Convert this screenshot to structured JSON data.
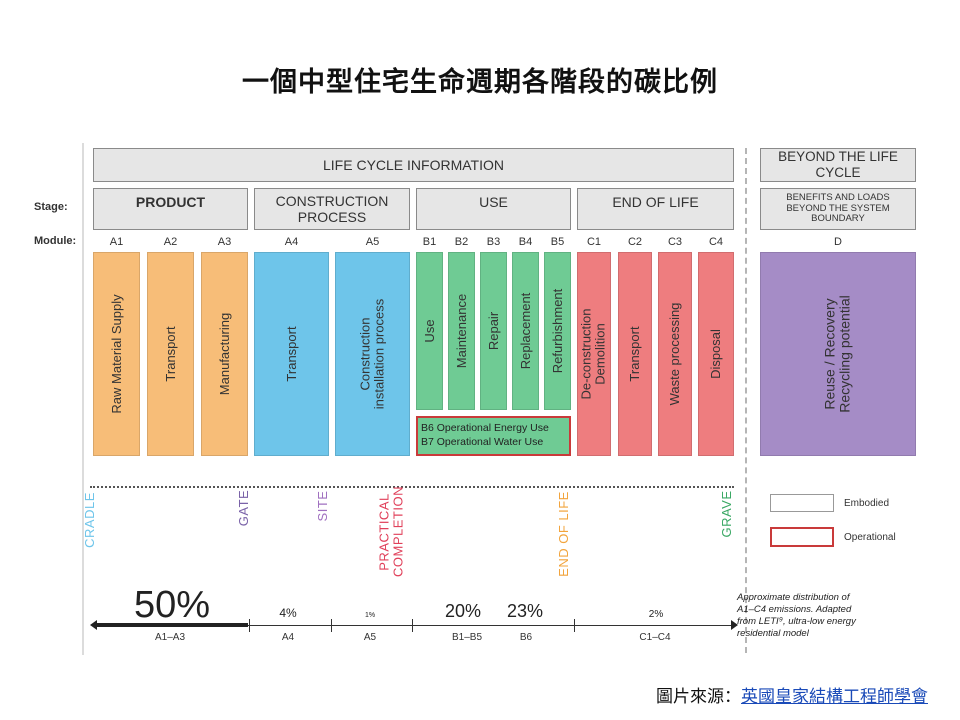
{
  "title": "一個中型住宅生命週期各階段的碳比例",
  "headers": {
    "life_cycle": "LIFE CYCLE INFORMATION",
    "beyond": "BEYOND THE LIFE CYCLE",
    "row_stage": "Stage:",
    "row_module": "Module:"
  },
  "stages": {
    "product": "PRODUCT",
    "construction": "CONSTRUCTION PROCESS",
    "use": "USE",
    "end_of_life": "END OF LIFE",
    "benefits": "BENEFITS AND LOADS BEYOND THE SYSTEM BOUNDARY"
  },
  "modules": [
    {
      "code": "A1",
      "label": "Raw Material Supply"
    },
    {
      "code": "A2",
      "label": "Transport"
    },
    {
      "code": "A3",
      "label": "Manufacturing"
    },
    {
      "code": "A4",
      "label": "Transport"
    },
    {
      "code": "A5",
      "label": "Construction installation process"
    },
    {
      "code": "B1",
      "label": "Use"
    },
    {
      "code": "B2",
      "label": "Maintenance"
    },
    {
      "code": "B3",
      "label": "Repair"
    },
    {
      "code": "B4",
      "label": "Replacement"
    },
    {
      "code": "B5",
      "label": "Refurbishment"
    },
    {
      "code": "C1",
      "label": "De-construction Demolition"
    },
    {
      "code": "C2",
      "label": "Transport"
    },
    {
      "code": "C3",
      "label": "Waste processing"
    },
    {
      "code": "C4",
      "label": "Disposal"
    },
    {
      "code": "D",
      "label": "Reuse / Recovery Recycling potential"
    }
  ],
  "operational_box": {
    "line1": "B6 Operational Energy Use",
    "line2": "B7 Operational Water Use"
  },
  "milestones": {
    "cradle": "CRADLE",
    "gate": "GATE",
    "site": "SITE",
    "practical_completion": "PRACTICAL COMPLETION",
    "end_of_life": "END OF LIFE",
    "grave": "GRAVE"
  },
  "distribution": [
    {
      "range": "A1–A3",
      "percent": "50%",
      "value": 50
    },
    {
      "range": "A4",
      "percent": "4%",
      "value": 4
    },
    {
      "range": "A5",
      "percent": "1%",
      "value": 1
    },
    {
      "range": "B1–B5",
      "percent": "20%",
      "value": 20
    },
    {
      "range": "B6",
      "percent": "23%",
      "value": 23
    },
    {
      "range": "C1–C4",
      "percent": "2%",
      "value": 2
    }
  ],
  "legend": {
    "embodied": "Embodied",
    "operational": "Operational"
  },
  "note": {
    "line1": "Approximate distribution of",
    "line2": "A1–C4 emissions. Adapted",
    "line3": "from LETI⁹, ultra-low energy",
    "line4": "residential model"
  },
  "source": {
    "prefix": "圖片來源：",
    "link": "英國皇家結構工程師學會"
  },
  "colors": {
    "product": "#f7bd78",
    "construction": "#6ec5ea",
    "use": "#6fcb94",
    "end_of_life": "#ee7d7f",
    "beyond": "#a58cc6",
    "operational_border": "#c93a3a",
    "cradle": "#6ec5ea",
    "gate": "#7a62a8",
    "site": "#a070c0",
    "practical_completion": "#e0405a",
    "end_of_life_marker": "#f2a43c",
    "grave": "#3aa864"
  }
}
